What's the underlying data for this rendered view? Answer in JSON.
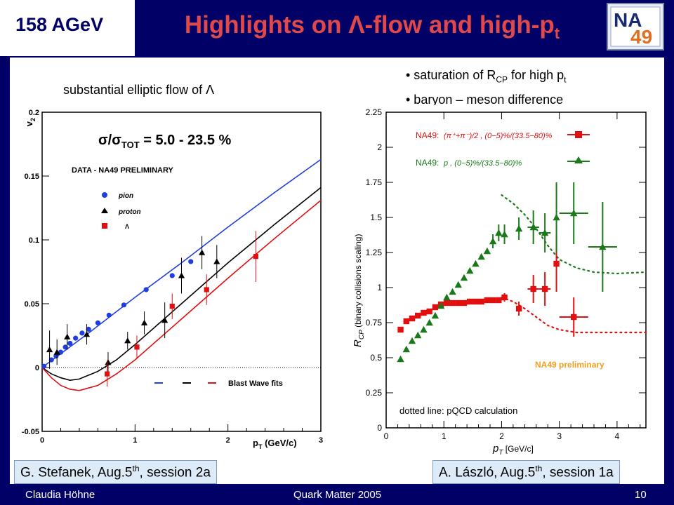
{
  "header": {
    "energy": "158 AGeV",
    "title_main": "Highlights on Λ-flow and high-p",
    "title_sub": "t",
    "logo_text_top": "NA",
    "logo_text_bottom": "49"
  },
  "bullets": [
    {
      "text": "• saturation of R",
      "sub": "CP",
      "text2": " for high p",
      "sub2": "t"
    },
    {
      "text": "• baryon – meson difference"
    }
  ],
  "left_caption": "substantial elliptic flow of Λ",
  "refs": {
    "left_pre": "G. Stefanek, Aug.5",
    "left_sup": "th",
    "left_post": ", session 2a",
    "right_pre": "A. László, Aug.5",
    "right_sup": "th",
    "right_post": ", session 1a"
  },
  "footer": {
    "author": "Claudia Höhne",
    "conference": "Quark Matter 2005",
    "page": "10"
  },
  "colors": {
    "navy": "#000066",
    "title": "#e0484a",
    "pion": "#1f3ee0",
    "proton": "#000000",
    "lambda": "#e01010",
    "baryon_green": "#1a7a1a",
    "na49_orange": "#f0a020"
  },
  "chart_data": [
    {
      "type": "scatter",
      "title": "σ/σTOT = 5.0 - 23.5 %",
      "title_main": "σ/σ",
      "title_sub": "TOT",
      "title_rest": " = 5.0 - 23.5 %",
      "label": "DATA - NA49 PRELIMINARY",
      "xlabel": "p",
      "xlabel_sub": "T",
      "xlabel_rest": " (GeV/c)",
      "ylabel": "v",
      "ylabel_sub": "2",
      "xlim": [
        0,
        3
      ],
      "ylim": [
        -0.05,
        0.2
      ],
      "xticks": [
        "0",
        "1",
        "2",
        "3"
      ],
      "yticks": [
        "-0.05",
        "0",
        "0.05",
        "0.1",
        "0.15",
        "0.2"
      ],
      "legend": [
        "pion",
        "proton",
        "Λ"
      ],
      "fit_label": "Blast Wave fits",
      "series": [
        {
          "name": "pion",
          "marker": "circle",
          "x": [
            0.02,
            0.1,
            0.15,
            0.2,
            0.25,
            0.3,
            0.36,
            0.43,
            0.5,
            0.6,
            0.72,
            0.88,
            1.12,
            1.4,
            1.6
          ],
          "y": [
            0.001,
            0.006,
            0.009,
            0.012,
            0.016,
            0.019,
            0.023,
            0.027,
            0.03,
            0.035,
            0.041,
            0.049,
            0.061,
            0.072,
            0.083
          ],
          "err": [
            0,
            0,
            0,
            0,
            0,
            0,
            0,
            0,
            0,
            0,
            0,
            0,
            0,
            0,
            0
          ]
        },
        {
          "name": "proton",
          "marker": "triangle",
          "x": [
            0.08,
            0.16,
            0.27,
            0.48,
            0.71,
            0.92,
            1.1,
            1.32,
            1.5,
            1.72,
            1.88
          ],
          "y": [
            0.014,
            0.012,
            0.024,
            0.026,
            0.004,
            0.021,
            0.035,
            0.037,
            0.072,
            0.09,
            0.083
          ],
          "err": [
            0.015,
            0.01,
            0.01,
            0.008,
            0.008,
            0.007,
            0.009,
            0.014,
            0.014,
            0.013,
            0.013
          ]
        },
        {
          "name": "Λ",
          "marker": "square",
          "x": [
            0.7,
            1.02,
            1.4,
            1.77,
            2.3
          ],
          "y": [
            -0.005,
            0.016,
            0.048,
            0.061,
            0.087
          ],
          "err": [
            0.01,
            0.009,
            0.01,
            0.012,
            0.02
          ]
        }
      ],
      "fits": [
        {
          "name": "pion",
          "x": [
            0.0,
            0.5,
            1.0,
            1.5,
            2.0,
            2.5,
            3.0
          ],
          "y": [
            0.0,
            0.027,
            0.055,
            0.082,
            0.11,
            0.137,
            0.163
          ]
        },
        {
          "name": "proton",
          "x": [
            0.0,
            0.1,
            0.2,
            0.3,
            0.4,
            0.6,
            0.8,
            1.0,
            1.5,
            2.0,
            2.5,
            3.0
          ],
          "y": [
            0.0,
            -0.005,
            -0.008,
            -0.01,
            -0.009,
            -0.003,
            0.006,
            0.018,
            0.05,
            0.082,
            0.112,
            0.141
          ]
        },
        {
          "name": "Λ",
          "x": [
            0.0,
            0.1,
            0.2,
            0.3,
            0.4,
            0.6,
            0.8,
            1.0,
            1.5,
            2.0,
            2.5,
            3.0
          ],
          "y": [
            0.0,
            -0.008,
            -0.014,
            -0.017,
            -0.018,
            -0.014,
            -0.005,
            0.006,
            0.038,
            0.07,
            0.101,
            0.131
          ]
        }
      ]
    },
    {
      "type": "scatter",
      "xlabel": "p",
      "xlabel_sub": "T",
      "xlabel_rest": " [GeV/c]",
      "ylabel": "R",
      "ylabel_sub": "CP",
      "ylabel_rest": " (binary collisions scaling)",
      "xlim": [
        0,
        4.5
      ],
      "ylim": [
        0,
        2.25
      ],
      "xticks": [
        "0",
        "1",
        "2",
        "3",
        "4"
      ],
      "yticks": [
        "0",
        "0.25",
        "0.5",
        "0.75",
        "1",
        "1.25",
        "1.5",
        "1.75",
        "2",
        "2.25"
      ],
      "legend_prefix": "NA49:",
      "legend_meson": "(π⁺+π⁻)/2 , (0−5)%/(33.5−80)%",
      "legend_baryon": "p , (0−5)%/(33.5−80)%",
      "na49_label": "NA49 preliminary",
      "calc_label": "dotted line: pQCD calculation",
      "series": [
        {
          "name": "meson",
          "marker": "square",
          "x": [
            0.25,
            0.35,
            0.45,
            0.55,
            0.65,
            0.75,
            0.85,
            0.95,
            1.05,
            1.15,
            1.25,
            1.35,
            1.45,
            1.55,
            1.65,
            1.75,
            1.85,
            1.95,
            2.05,
            2.3,
            2.55,
            2.75,
            2.95,
            3.25
          ],
          "y": [
            0.7,
            0.76,
            0.78,
            0.8,
            0.82,
            0.83,
            0.86,
            0.88,
            0.89,
            0.89,
            0.89,
            0.89,
            0.9,
            0.9,
            0.9,
            0.91,
            0.91,
            0.91,
            0.93,
            0.85,
            0.99,
            0.99,
            1.17,
            0.79
          ],
          "err": [
            0,
            0,
            0,
            0,
            0,
            0,
            0,
            0,
            0,
            0,
            0,
            0,
            0,
            0,
            0,
            0,
            0,
            0,
            0.03,
            0.05,
            0.1,
            0.12,
            0.2,
            0.14
          ],
          "xerr": [
            0,
            0,
            0,
            0,
            0,
            0,
            0,
            0,
            0,
            0,
            0,
            0,
            0,
            0,
            0,
            0,
            0,
            0,
            0,
            0,
            0.1,
            0.1,
            0,
            0.25
          ]
        },
        {
          "name": "baryon",
          "marker": "triangle",
          "x": [
            0.25,
            0.35,
            0.45,
            0.55,
            0.65,
            0.75,
            0.85,
            0.95,
            1.05,
            1.15,
            1.25,
            1.35,
            1.45,
            1.55,
            1.65,
            1.75,
            1.85,
            1.95,
            2.05,
            2.3,
            2.55,
            2.75,
            2.95,
            3.25,
            3.75
          ],
          "y": [
            0.49,
            0.56,
            0.62,
            0.66,
            0.7,
            0.75,
            0.8,
            0.87,
            0.93,
            0.97,
            1.02,
            1.07,
            1.12,
            1.17,
            1.22,
            1.26,
            1.33,
            1.39,
            1.38,
            1.42,
            1.43,
            1.39,
            1.5,
            1.53,
            1.29
          ],
          "err": [
            0,
            0,
            0,
            0,
            0,
            0,
            0,
            0,
            0,
            0,
            0,
            0,
            0,
            0,
            0,
            0,
            0.05,
            0.06,
            0.07,
            0.08,
            0.12,
            0.14,
            0.25,
            0.22,
            0.32
          ],
          "xerr": [
            0,
            0,
            0,
            0,
            0,
            0,
            0,
            0,
            0,
            0,
            0,
            0,
            0,
            0,
            0,
            0,
            0,
            0,
            0,
            0,
            0.1,
            0.1,
            0,
            0.25,
            0.25
          ]
        }
      ],
      "calc_curves": [
        {
          "name": "baryon",
          "x": [
            2.0,
            2.2,
            2.4,
            2.6,
            2.8,
            3.0,
            3.3,
            3.6,
            4.0,
            4.5
          ],
          "y": [
            1.66,
            1.6,
            1.52,
            1.42,
            1.3,
            1.2,
            1.14,
            1.11,
            1.1,
            1.11
          ]
        },
        {
          "name": "meson",
          "x": [
            2.0,
            2.2,
            2.4,
            2.6,
            2.8,
            3.0,
            3.3,
            3.6,
            4.0,
            4.5
          ],
          "y": [
            0.93,
            0.9,
            0.85,
            0.79,
            0.73,
            0.7,
            0.68,
            0.68,
            0.68,
            0.68
          ]
        }
      ]
    }
  ]
}
